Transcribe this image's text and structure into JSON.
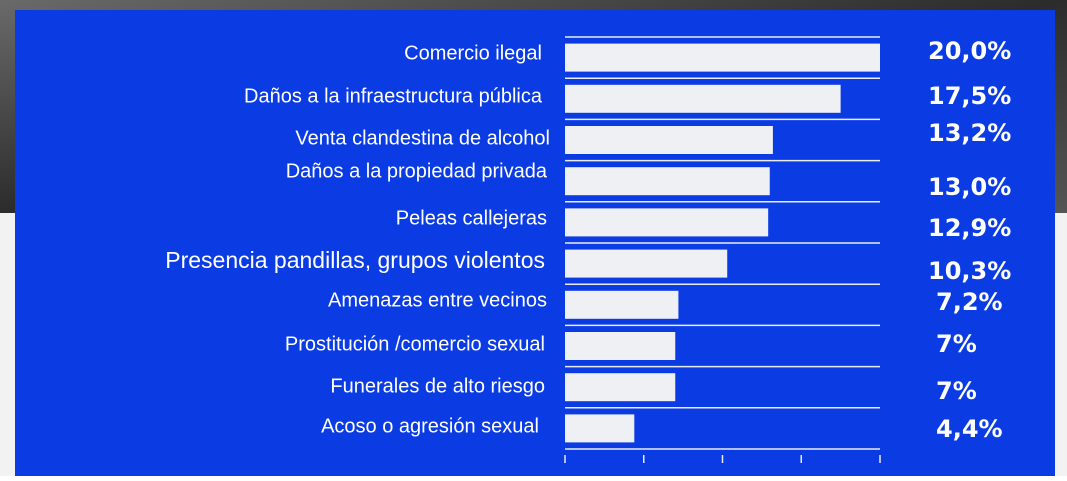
{
  "chart_data": {
    "type": "bar",
    "orientation": "horizontal",
    "categories": [
      "Comercio ilegal",
      "Daños a la infraestructura pública",
      "Venta clandestina de alcohol",
      "Daños a la propiedad privada",
      "Peleas callejeras",
      "Presencia pandillas, grupos violentos",
      "Amenazas entre vecinos",
      "Prostitución /comercio sexual",
      "Funerales de alto riesgo",
      "Acoso o agresión sexual"
    ],
    "values": [
      20.0,
      17.5,
      13.2,
      13.0,
      12.9,
      10.3,
      7.2,
      7,
      7,
      4.4
    ],
    "value_labels": [
      "20,0%",
      "17,5%",
      "13,2%",
      "13,0%",
      "12,9%",
      "10,3%",
      "7,2%",
      "7%",
      "7%",
      "4,4%"
    ],
    "color": "#eef0f4",
    "xlim": [
      0,
      20
    ],
    "xticks": [
      0,
      5,
      10,
      15,
      20
    ]
  }
}
